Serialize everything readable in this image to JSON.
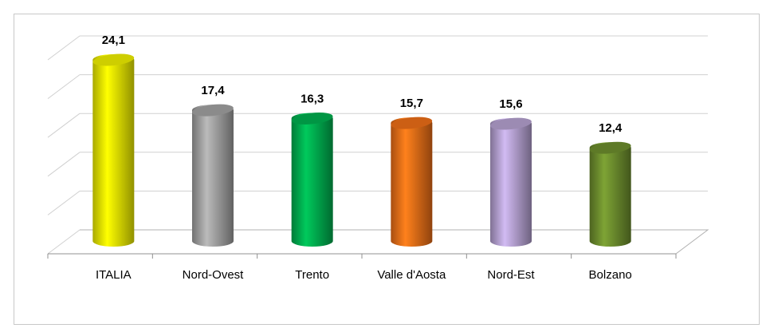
{
  "chart_data": {
    "type": "bar3d",
    "categories": [
      "ITALIA",
      "Nord-Ovest",
      "Trento",
      "Valle d'Aosta",
      "Nord-Est",
      "Bolzano"
    ],
    "values": [
      24.1,
      17.4,
      16.3,
      15.7,
      15.6,
      12.4
    ],
    "value_labels": [
      "24,1",
      "17,4",
      "16,3",
      "15,7",
      "15,6",
      "12,4"
    ],
    "colors": [
      "#f2f200",
      "#a3a3a3",
      "#00b050",
      "#f07018",
      "#b7a3d3",
      "#6e8f2e"
    ],
    "ylim": [
      0,
      25
    ],
    "yticks": [
      0,
      5,
      10,
      15,
      20,
      25
    ],
    "grid": true
  }
}
